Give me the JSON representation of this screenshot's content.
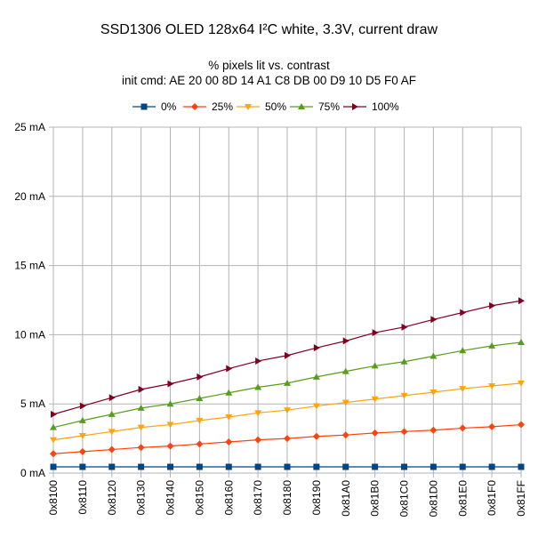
{
  "chart_data": {
    "type": "line",
    "title": "SSD1306 OLED 128x64 I²C white, 3.3V, current draw",
    "subtitle_lines": [
      "% pixels lit vs. contrast",
      "init cmd: AE 20 00 8D 14 A1 C8 DB 00 D9 10 D5 F0 AF"
    ],
    "xlabel": "",
    "ylabel": "",
    "categories": [
      "0x8100",
      "0x8110",
      "0x8120",
      "0x8130",
      "0x8140",
      "0x8150",
      "0x8160",
      "0x8170",
      "0x8180",
      "0x8190",
      "0x81A0",
      "0x81B0",
      "0x81C0",
      "0x81D0",
      "0x81E0",
      "0x81F0",
      "0x81FF"
    ],
    "ylim": [
      0,
      25
    ],
    "yticks": [
      0,
      5,
      10,
      15,
      20,
      25
    ],
    "ytick_labels": [
      "0 mA",
      "5 mA",
      "10 mA",
      "15 mA",
      "20 mA",
      "25 mA"
    ],
    "grid": true,
    "legend_position": "top",
    "series": [
      {
        "name": "0%",
        "color": "#004586",
        "marker": "square",
        "values": [
          0.45,
          0.45,
          0.45,
          0.45,
          0.45,
          0.45,
          0.45,
          0.45,
          0.45,
          0.45,
          0.45,
          0.45,
          0.45,
          0.45,
          0.45,
          0.45,
          0.45
        ]
      },
      {
        "name": "25%",
        "color": "#ff420e",
        "marker": "diamond",
        "values": [
          1.4,
          1.55,
          1.7,
          1.85,
          1.95,
          2.1,
          2.25,
          2.4,
          2.5,
          2.65,
          2.75,
          2.9,
          3.0,
          3.1,
          3.25,
          3.35,
          3.5
        ]
      },
      {
        "name": "50%",
        "color": "#ffa30f",
        "marker": "triangle-down",
        "values": [
          2.4,
          2.7,
          3.0,
          3.3,
          3.5,
          3.8,
          4.05,
          4.35,
          4.55,
          4.85,
          5.1,
          5.35,
          5.6,
          5.85,
          6.1,
          6.3,
          6.5
        ]
      },
      {
        "name": "75%",
        "color": "#579d1c",
        "marker": "triangle-up",
        "values": [
          3.3,
          3.8,
          4.25,
          4.7,
          5.0,
          5.4,
          5.8,
          6.2,
          6.5,
          6.95,
          7.35,
          7.75,
          8.05,
          8.45,
          8.85,
          9.2,
          9.45
        ]
      },
      {
        "name": "100%",
        "color": "#7e0021",
        "marker": "triangle-right",
        "values": [
          4.25,
          4.85,
          5.45,
          6.05,
          6.45,
          6.95,
          7.55,
          8.1,
          8.5,
          9.05,
          9.55,
          10.15,
          10.55,
          11.1,
          11.6,
          12.1,
          12.45
        ]
      }
    ]
  }
}
